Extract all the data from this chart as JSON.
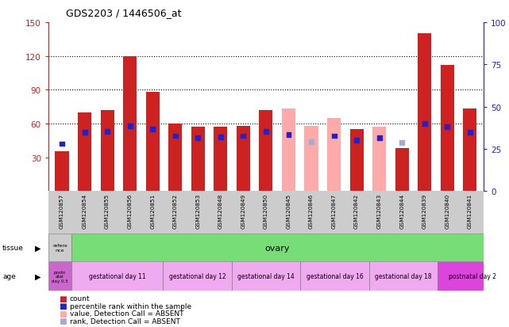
{
  "title": "GDS2203 / 1446506_at",
  "samples": [
    "GSM120857",
    "GSM120854",
    "GSM120855",
    "GSM120856",
    "GSM120851",
    "GSM120852",
    "GSM120853",
    "GSM120848",
    "GSM120849",
    "GSM120850",
    "GSM120845",
    "GSM120846",
    "GSM120847",
    "GSM120842",
    "GSM120843",
    "GSM120844",
    "GSM120839",
    "GSM120840",
    "GSM120841"
  ],
  "bar_values": [
    35,
    70,
    72,
    120,
    88,
    60,
    57,
    57,
    58,
    72,
    73,
    58,
    65,
    55,
    57,
    38,
    140,
    112,
    73
  ],
  "bar_absent": [
    false,
    false,
    false,
    false,
    false,
    false,
    false,
    false,
    false,
    false,
    true,
    true,
    true,
    false,
    true,
    false,
    false,
    false,
    false
  ],
  "dot_values": [
    42,
    52,
    53,
    58,
    55,
    49,
    47,
    48,
    49,
    53,
    50,
    44,
    49,
    45,
    47,
    43,
    60,
    57,
    52
  ],
  "dot_absent": [
    false,
    false,
    false,
    false,
    false,
    false,
    false,
    false,
    false,
    false,
    false,
    true,
    false,
    false,
    false,
    true,
    false,
    false,
    false
  ],
  "ylim_left": [
    0,
    150
  ],
  "ylim_right": [
    0,
    100
  ],
  "yticks_left": [
    30,
    60,
    90,
    120,
    150
  ],
  "yticks_right": [
    0,
    25,
    50,
    75,
    100
  ],
  "bar_color_present": "#cc2222",
  "bar_color_absent": "#ffaaaa",
  "dot_color_present": "#2222cc",
  "dot_color_absent": "#aaaacc",
  "tissue_ref_label": "refere\nnce",
  "tissue_ref_color": "#cccccc",
  "tissue_ovary_label": "ovary",
  "tissue_ovary_color": "#77dd77",
  "age_ref_label": "postn\natal\nday 0.5",
  "age_ref_color": "#cc66cc",
  "age_groups": [
    {
      "label": "gestational day 11",
      "color": "#f0aaf0",
      "span": 4
    },
    {
      "label": "gestational day 12",
      "color": "#f0aaf0",
      "span": 3
    },
    {
      "label": "gestational day 14",
      "color": "#f0aaf0",
      "span": 3
    },
    {
      "label": "gestational day 16",
      "color": "#f0aaf0",
      "span": 3
    },
    {
      "label": "gestational day 18",
      "color": "#f0aaf0",
      "span": 3
    },
    {
      "label": "postnatal day 2",
      "color": "#dd44dd",
      "span": 3
    }
  ],
  "legend": [
    {
      "label": "count",
      "color": "#cc2222"
    },
    {
      "label": "percentile rank within the sample",
      "color": "#2222cc"
    },
    {
      "label": "value, Detection Call = ABSENT",
      "color": "#ffaaaa"
    },
    {
      "label": "rank, Detection Call = ABSENT",
      "color": "#aaaacc"
    }
  ]
}
